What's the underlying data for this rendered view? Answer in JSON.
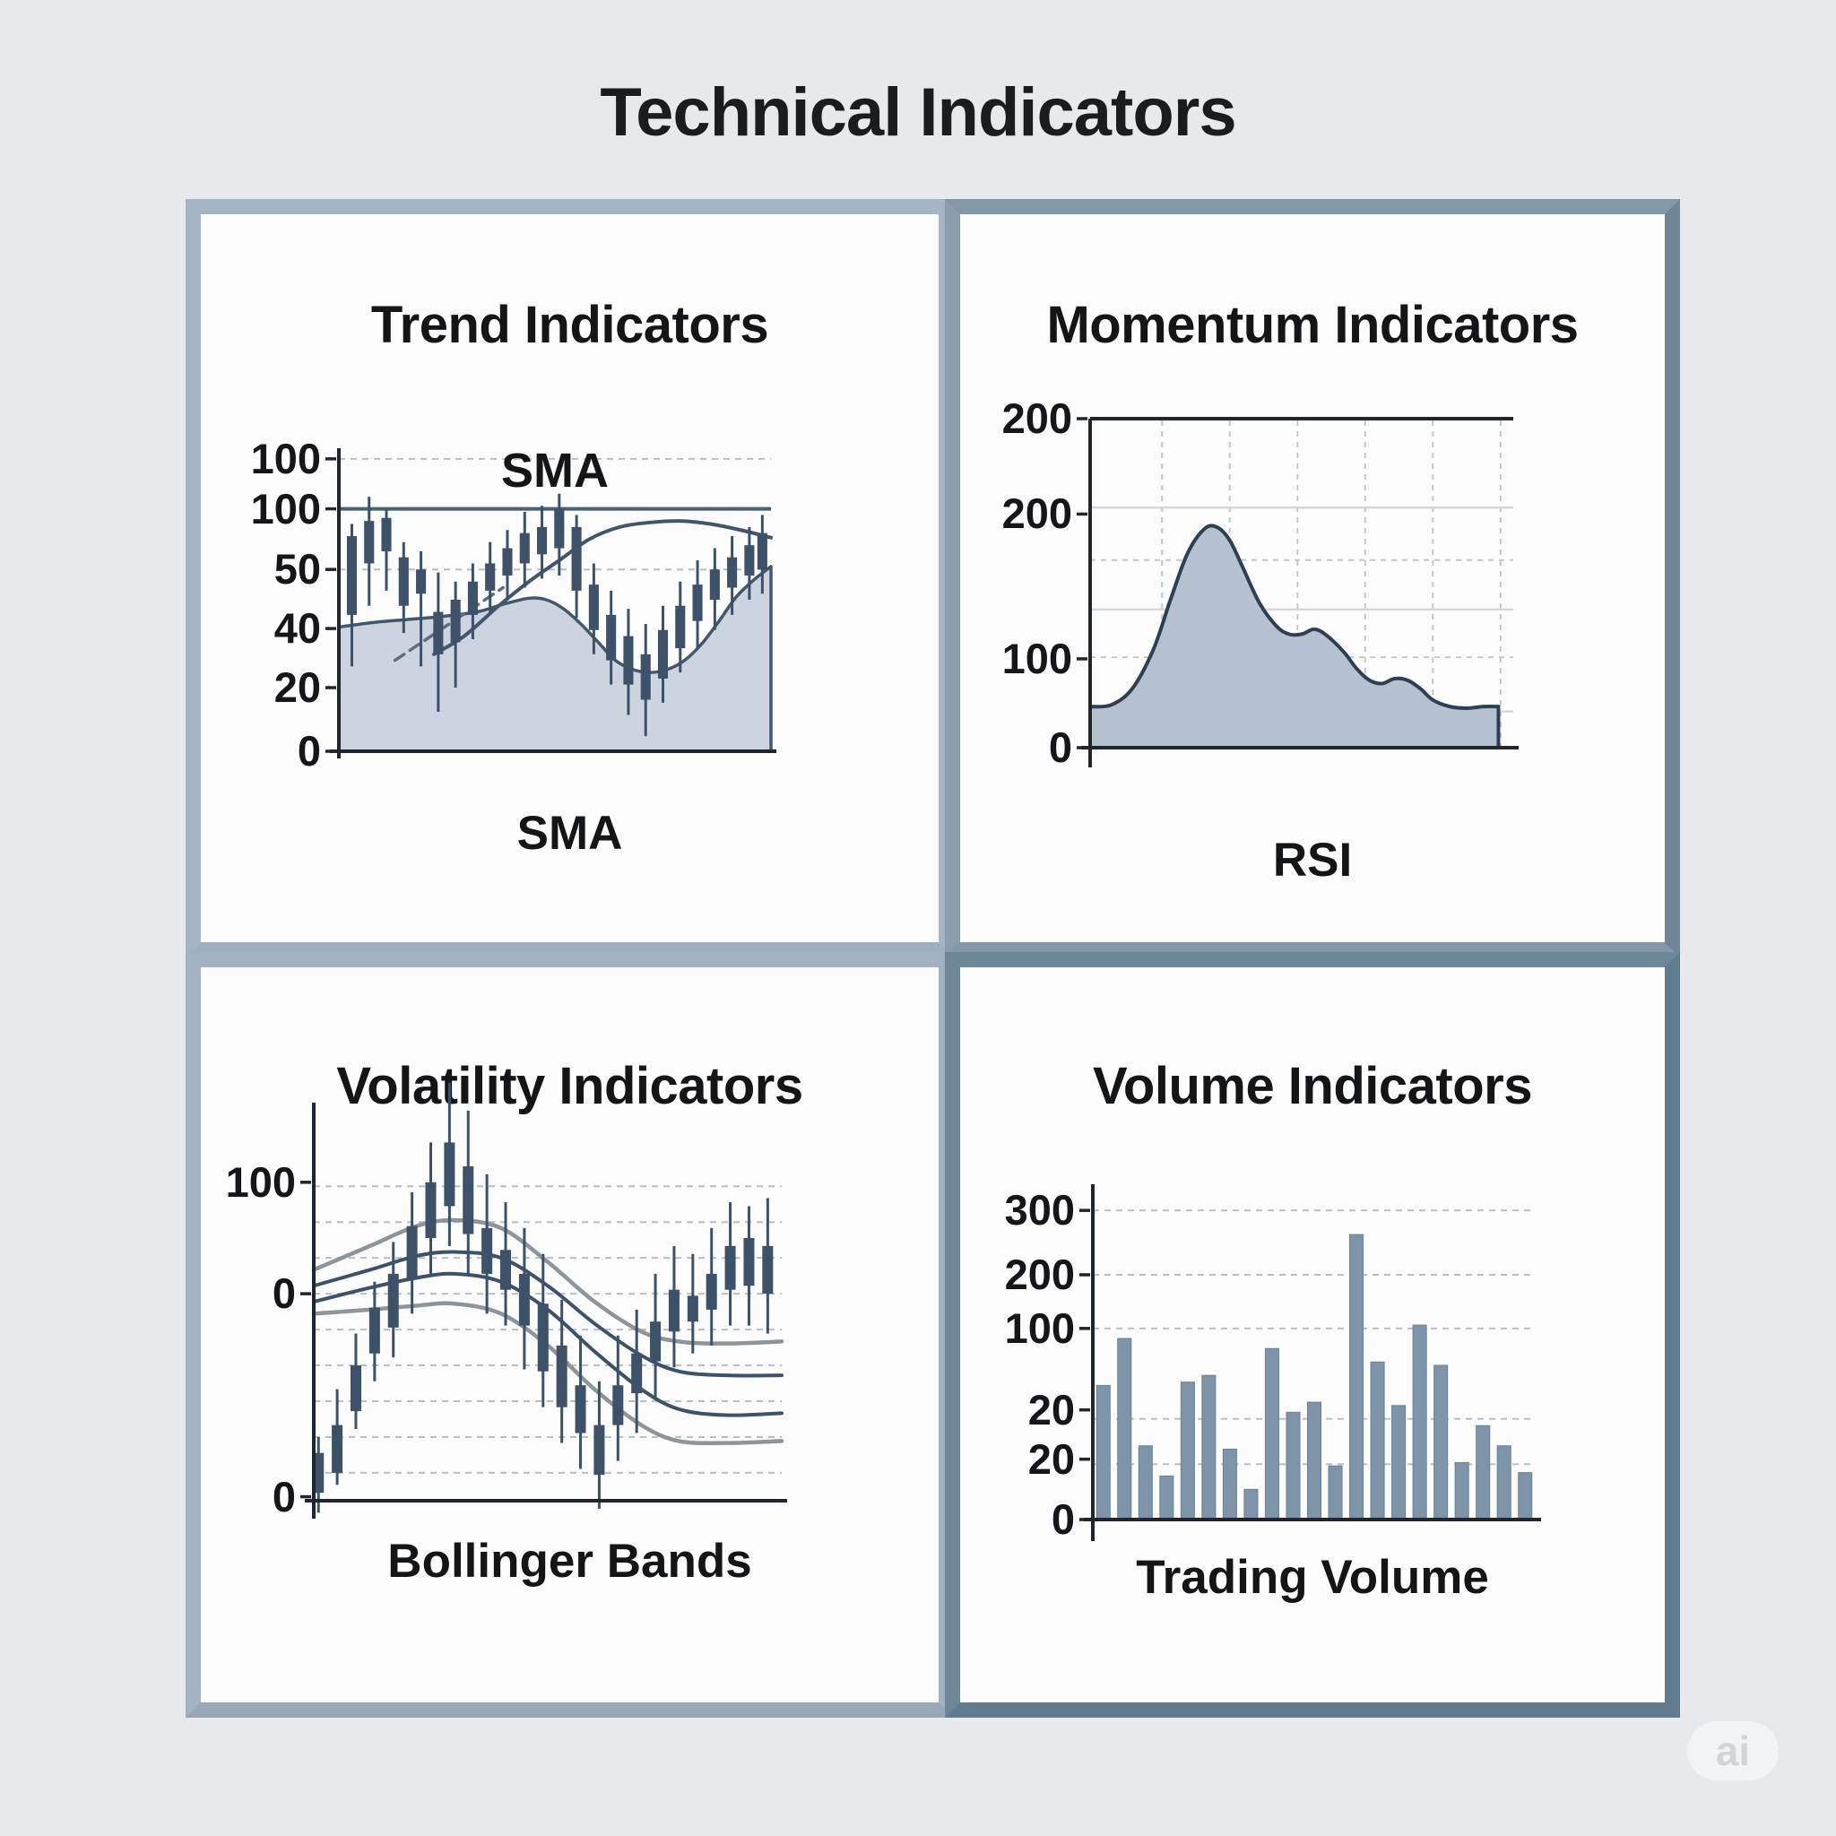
{
  "page": {
    "title": "Technical Indicators",
    "watermark_label": "ai",
    "background": "#e8e9ea",
    "panel_background": "#fcfcfd",
    "text_color": "#17191b"
  },
  "panels": [
    {
      "title": "Trend Indicators",
      "caption": "SMA",
      "inner_label": "SMA",
      "ticks": [
        {
          "label": "100",
          "f": 0.035
        },
        {
          "label": "100",
          "f": 0.2
        },
        {
          "label": "50",
          "f": 0.4
        },
        {
          "label": "40",
          "f": 0.595
        },
        {
          "label": "20",
          "f": 0.79
        },
        {
          "label": "0",
          "f": 1.0
        }
      ],
      "grid_dashed": [
        0.035,
        0.4,
        0.79
      ],
      "hline": {
        "f": 0.2,
        "color": "#4a6075",
        "w": 4
      },
      "axes": {
        "left": true,
        "bottom": true,
        "top": false,
        "color": "#20262c",
        "w": 4,
        "overhang": 8
      },
      "area": {
        "fill": "#ccd4df",
        "stroke": "#41576e",
        "sw": 3.5,
        "points": [
          [
            0,
            59
          ],
          [
            8,
            57.5
          ],
          [
            16,
            56.5
          ],
          [
            24,
            55.5
          ],
          [
            32,
            54
          ],
          [
            38,
            51.5
          ],
          [
            44,
            49.5
          ],
          [
            48,
            50
          ],
          [
            52,
            53
          ],
          [
            56,
            58
          ],
          [
            60,
            64
          ],
          [
            64,
            70
          ],
          [
            68,
            73
          ],
          [
            72,
            74
          ],
          [
            76,
            73
          ],
          [
            80,
            70
          ],
          [
            84,
            64.5
          ],
          [
            88,
            57
          ],
          [
            92,
            49
          ],
          [
            96,
            43.5
          ],
          [
            100,
            39
          ]
        ]
      },
      "curves": [
        {
          "points": [
            [
              22,
              68
            ],
            [
              29,
              62
            ],
            [
              37,
              52
            ],
            [
              44,
              44
            ],
            [
              51,
              37
            ],
            [
              58,
              30
            ],
            [
              65,
              26
            ],
            [
              72,
              24.5
            ],
            [
              79,
              24
            ],
            [
              86,
              25
            ],
            [
              93,
              27
            ],
            [
              100,
              29.5
            ]
          ],
          "color": "#3f566e",
          "w": 4,
          "dash": null
        },
        {
          "points": [
            [
              13,
              70
            ],
            [
              38,
              46
            ]
          ],
          "color": "#5d6e80",
          "w": 3.5,
          "dash": "12 8"
        }
      ],
      "candle_color": "#3d5168"
    },
    {
      "title": "Momentum Indicators",
      "caption": "RSI",
      "ticks": [
        {
          "label": "200",
          "f": 0.0
        },
        {
          "label": "200",
          "f": 0.29
        },
        {
          "label": "100",
          "f": 0.73
        },
        {
          "label": "0",
          "f": 1.0
        }
      ],
      "grid_v": [
        0.17,
        0.33,
        0.49,
        0.65,
        0.81,
        0.97
      ],
      "grid_h": [
        {
          "f": 0.27,
          "dashed": false
        },
        {
          "f": 0.43,
          "dashed": true
        },
        {
          "f": 0.58,
          "dashed": false
        },
        {
          "f": 0.725,
          "dashed": true
        },
        {
          "f": 0.89,
          "dashed": false
        }
      ],
      "axes": {
        "left": true,
        "bottom": true,
        "top": true,
        "color": "#20262c",
        "w": 4,
        "overhang": 22
      },
      "area": {
        "fill": "#b5c1cf",
        "stroke": "#2c3f54",
        "sw": 4
      }
    },
    {
      "title": "Volatility Indicators",
      "caption": "Bollinger Bands",
      "ticks": [
        {
          "label": "100",
          "f": 0.2
        },
        {
          "label": "0",
          "f": 0.48
        },
        {
          "label": "0",
          "f": 0.99
        }
      ],
      "grid_dashed": [
        0.21,
        0.3,
        0.39,
        0.48,
        0.57,
        0.66,
        0.75,
        0.84,
        0.93
      ],
      "axes": {
        "left": true,
        "bottom": true,
        "top": false,
        "color": "#20262c",
        "w": 4,
        "overhang": 20
      },
      "bands": [
        {
          "points": [
            [
              0,
              42
            ],
            [
              12,
              36
            ],
            [
              22,
              31
            ],
            [
              30,
              29.5
            ],
            [
              40,
              31.5
            ],
            [
              50,
              40
            ],
            [
              60,
              50
            ],
            [
              70,
              57.5
            ],
            [
              78,
              60
            ],
            [
              88,
              60.5
            ],
            [
              100,
              60
            ]
          ],
          "color": "#8c949c",
          "w": 4.5
        },
        {
          "points": [
            [
              0,
              46
            ],
            [
              12,
              42
            ],
            [
              22,
              38.5
            ],
            [
              30,
              37.5
            ],
            [
              40,
              39
            ],
            [
              50,
              46
            ],
            [
              60,
              55.5
            ],
            [
              70,
              63.5
            ],
            [
              78,
              67.5
            ],
            [
              88,
              68.5
            ],
            [
              100,
              68.5
            ]
          ],
          "color": "#3b526a",
          "w": 4
        },
        {
          "points": [
            [
              0,
              50
            ],
            [
              12,
              46.5
            ],
            [
              22,
              44
            ],
            [
              30,
              43
            ],
            [
              40,
              45
            ],
            [
              50,
              52
            ],
            [
              60,
              62.5
            ],
            [
              70,
              72
            ],
            [
              78,
              77
            ],
            [
              88,
              78.5
            ],
            [
              100,
              78
            ]
          ],
          "color": "#3b526a",
          "w": 4
        },
        {
          "points": [
            [
              0,
              53
            ],
            [
              12,
              52
            ],
            [
              22,
              51
            ],
            [
              30,
              50.5
            ],
            [
              40,
              53
            ],
            [
              50,
              61
            ],
            [
              60,
              72
            ],
            [
              70,
              81
            ],
            [
              78,
              85
            ],
            [
              88,
              85.5
            ],
            [
              100,
              85
            ]
          ],
          "color": "#8c949c",
          "w": 4.5
        }
      ],
      "candle_color": "#3d5168"
    },
    {
      "title": "Volume Indicators",
      "caption": "Trading Volume",
      "ticks": [
        {
          "label": "300",
          "f": 0.078
        },
        {
          "label": "200",
          "f": 0.27
        },
        {
          "label": "100",
          "f": 0.43
        },
        {
          "label": "20",
          "f": 0.673
        },
        {
          "label": "20",
          "f": 0.82
        },
        {
          "label": "0",
          "f": 1.0
        }
      ],
      "grid_dashed": [
        0.078,
        0.27,
        0.43,
        0.7,
        0.835
      ],
      "axes": {
        "left": true,
        "bottom": true,
        "top": false,
        "color": "#20262c",
        "w": 4,
        "overhang": 24
      },
      "bar_color": "#7d94a9",
      "bar_stroke": "#6b8295"
    }
  ],
  "chart_data": [
    {
      "type": "candlestick",
      "title": "Trend Indicators",
      "indicator": "SMA",
      "y_tick_labels": [
        "100",
        "100",
        "50",
        "40",
        "20",
        "0"
      ],
      "grid": "horizontal-dashed",
      "overlays": [
        "SMA moving-average line",
        "shaded area fill",
        "solid horizontal level at 100",
        "short dashed trend line"
      ],
      "candles_pct": [
        [
          3,
          29,
          55,
          25,
          72
        ],
        [
          7,
          24,
          38,
          16,
          52
        ],
        [
          11,
          23,
          34,
          20,
          47
        ],
        [
          15,
          36,
          52,
          31,
          61
        ],
        [
          19,
          40,
          48,
          34,
          72
        ],
        [
          23,
          54,
          68,
          41,
          87
        ],
        [
          27,
          50,
          64,
          44,
          79
        ],
        [
          31,
          44,
          55,
          38,
          63
        ],
        [
          35,
          38,
          47,
          31,
          55
        ],
        [
          39,
          33,
          42,
          27,
          50
        ],
        [
          43,
          28,
          38,
          21,
          46
        ],
        [
          47,
          26,
          35,
          19,
          43
        ],
        [
          51,
          20,
          33,
          15,
          42
        ],
        [
          55,
          26,
          47,
          22,
          56
        ],
        [
          59,
          45,
          60,
          38,
          68
        ],
        [
          63,
          55,
          70,
          47,
          78
        ],
        [
          67,
          62,
          78,
          53,
          88
        ],
        [
          71,
          68,
          83,
          58,
          95
        ],
        [
          75,
          60,
          76,
          52,
          84
        ],
        [
          79,
          52,
          66,
          44,
          74
        ],
        [
          83,
          45,
          57,
          37,
          66
        ],
        [
          87,
          40,
          50,
          33,
          60
        ],
        [
          91,
          36,
          46,
          29,
          55
        ],
        [
          95,
          32,
          42,
          26,
          50
        ],
        [
          98,
          28,
          40,
          22,
          48
        ]
      ]
    },
    {
      "type": "area",
      "title": "Momentum Indicators",
      "indicator": "RSI",
      "y_tick_labels": [
        "200",
        "200",
        "100",
        "0"
      ],
      "grid": "full-grid",
      "points_pct": [
        [
          0,
          87.5
        ],
        [
          5,
          87
        ],
        [
          10,
          82
        ],
        [
          15,
          70
        ],
        [
          19,
          55
        ],
        [
          23,
          41
        ],
        [
          27,
          33.5
        ],
        [
          30,
          33
        ],
        [
          33,
          37
        ],
        [
          36,
          45
        ],
        [
          40,
          56
        ],
        [
          44,
          63
        ],
        [
          47,
          65.5
        ],
        [
          50,
          65.5
        ],
        [
          53,
          64
        ],
        [
          56,
          66
        ],
        [
          60,
          71
        ],
        [
          63,
          76
        ],
        [
          66,
          79.5
        ],
        [
          69,
          80.5
        ],
        [
          72,
          79
        ],
        [
          75,
          79.5
        ],
        [
          78,
          82
        ],
        [
          81,
          85.5
        ],
        [
          85,
          87.5
        ],
        [
          89,
          88
        ],
        [
          93,
          87.5
        ],
        [
          96.5,
          87.5
        ]
      ]
    },
    {
      "type": "candlestick",
      "title": "Volatility Indicators",
      "indicator": "Bollinger Bands",
      "y_tick_labels": [
        "100",
        "0",
        "0"
      ],
      "grid": "horizontal-dashed",
      "band_lines": 4,
      "candles_pct": [
        [
          1,
          88,
          98,
          84,
          103
        ],
        [
          5,
          81,
          93,
          72,
          96
        ],
        [
          9,
          66,
          77.5,
          58,
          82
        ],
        [
          13,
          51.5,
          63,
          45,
          70
        ],
        [
          17,
          43,
          56.5,
          35,
          64
        ],
        [
          21,
          31,
          44.5,
          22.5,
          53
        ],
        [
          25,
          20,
          34,
          10,
          43
        ],
        [
          29,
          10,
          26,
          -5,
          36
        ],
        [
          33,
          16,
          33,
          2,
          43
        ],
        [
          37,
          31.5,
          43,
          18,
          53
        ],
        [
          41,
          37,
          47,
          25,
          56
        ],
        [
          45,
          43,
          56,
          31.5,
          67
        ],
        [
          49,
          50.5,
          67.5,
          38,
          76.5
        ],
        [
          53,
          61,
          76.5,
          49.5,
          85.5
        ],
        [
          57,
          71,
          83,
          58.5,
          92
        ],
        [
          61,
          81,
          93.5,
          70,
          102
        ],
        [
          65,
          71,
          81,
          58.5,
          90
        ],
        [
          69,
          63,
          73,
          52,
          83
        ],
        [
          73,
          55,
          65,
          43,
          74
        ],
        [
          77,
          47,
          57.5,
          36,
          66.5
        ],
        [
          81,
          48.5,
          55,
          38,
          63
        ],
        [
          85,
          43,
          52,
          31.5,
          61
        ],
        [
          89,
          36,
          47,
          25,
          56
        ],
        [
          93,
          34,
          46,
          26,
          56
        ],
        [
          97,
          36,
          48,
          24,
          58
        ]
      ]
    },
    {
      "type": "bar",
      "title": "Volume Indicators",
      "indicator": "Trading Volume",
      "y_tick_labels": [
        "300",
        "200",
        "100",
        "20",
        "20",
        "0"
      ],
      "grid": "horizontal-dashed",
      "bar_heights_pct": [
        40,
        54,
        22,
        13,
        41,
        43,
        21,
        9,
        51,
        32,
        35,
        16,
        85,
        47,
        34,
        58,
        46,
        17,
        28,
        22,
        14
      ],
      "values_approx_0_300": [
        130,
        175,
        71,
        42,
        133,
        139,
        68,
        29,
        165,
        104,
        113,
        52,
        276,
        152,
        110,
        188,
        149,
        55,
        91,
        71,
        45
      ]
    }
  ]
}
